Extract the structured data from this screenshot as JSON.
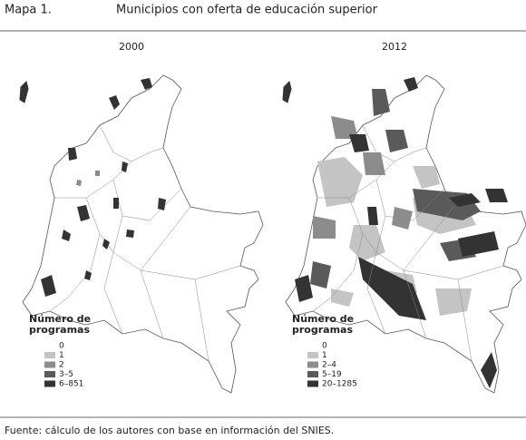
{
  "header": {
    "label": "Mapa 1.",
    "title": "Municipios con oferta de educación superior"
  },
  "maps": [
    {
      "title": "2000",
      "legend": {
        "title": [
          "Número de",
          "programas"
        ],
        "items": [
          {
            "label": "0",
            "color": "#ffffff"
          },
          {
            "label": "1",
            "color": "#c4c4c4"
          },
          {
            "label": "2",
            "color": "#8c8c8c"
          },
          {
            "label": "3–5",
            "color": "#5a5a5a"
          },
          {
            "label": "6–851",
            "color": "#333333"
          }
        ]
      }
    },
    {
      "title": "2012",
      "legend": {
        "title": [
          "Número de",
          "programas"
        ],
        "items": [
          {
            "label": "0",
            "color": "#ffffff"
          },
          {
            "label": "1",
            "color": "#c4c4c4"
          },
          {
            "label": "2–4",
            "color": "#8c8c8c"
          },
          {
            "label": "5–19",
            "color": "#5a5a5a"
          },
          {
            "label": "20–1285",
            "color": "#333333"
          }
        ]
      }
    }
  ],
  "source": "Fuente: cálculo de los autores con base en información del SNIES."
}
